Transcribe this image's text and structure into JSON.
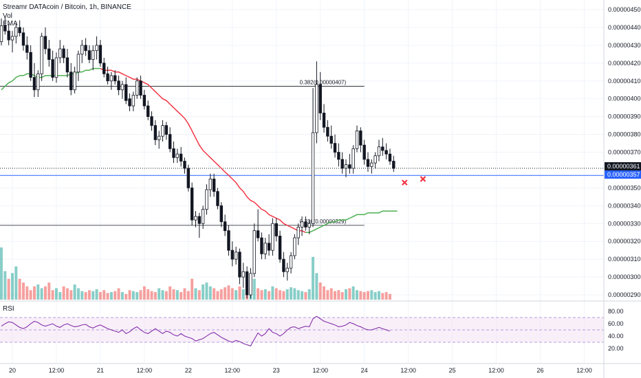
{
  "header": {
    "title": "Streamr DATAcoin / Bitcoin, 1h, BINANCE",
    "vol_label": "Vol",
    "ema_label": "EMA"
  },
  "rsi_panel": {
    "label": "RSI"
  },
  "price_tags": {
    "current": "0.00000361",
    "hline": "0.00000357"
  },
  "colors": {
    "up": "#26a69a",
    "down": "#ef5350",
    "candle": "#131722",
    "ema_up": "#4caf50",
    "ema_down": "#f23645",
    "hline": "#2962ff",
    "rsi_line": "#7b1fa2",
    "rsi_band": "#f3e5f5",
    "marker": "#f23645"
  },
  "chart_data": [
    {
      "type": "candlestick",
      "title": "Streamr DATAcoin / Bitcoin, 1h, BINANCE",
      "y_axis_ticks": [
        "0.00000450",
        "0.00000440",
        "0.00000430",
        "0.00000420",
        "0.00000410",
        "0.00000400",
        "0.00000390",
        "0.00000380",
        "0.00000370",
        "0.00000350",
        "0.00000340",
        "0.00000330",
        "0.00000320",
        "0.00000310",
        "0.00000300",
        "0.00000290"
      ],
      "y_axis_tick_values": [
        4.5,
        4.4,
        4.3,
        4.2,
        4.1,
        4.0,
        3.9,
        3.8,
        3.7,
        3.5,
        3.4,
        3.3,
        3.2,
        3.1,
        3.0,
        2.9
      ],
      "x_axis_ticks": [
        "20",
        "12:00",
        "21",
        "12:00",
        "22",
        "12:00",
        "23",
        "12:00",
        "24",
        "12:00",
        "25",
        "12:00",
        "26",
        "12:00"
      ],
      "x_axis_tick_hours": [
        0,
        12,
        24,
        36,
        48,
        60,
        72,
        84,
        96,
        108,
        120,
        132,
        144,
        156
      ],
      "ylim": [
        2.86,
        4.56
      ],
      "y_unit_note": "values in 1e-6 BTC",
      "candles_start_hour": -3,
      "candles": [
        [
          4.32,
          4.45,
          4.3,
          4.41
        ],
        [
          4.41,
          4.46,
          4.36,
          4.38
        ],
        [
          4.38,
          4.42,
          4.3,
          4.33
        ],
        [
          4.33,
          4.38,
          4.26,
          4.35
        ],
        [
          4.35,
          4.42,
          4.31,
          4.4
        ],
        [
          4.4,
          4.44,
          4.35,
          4.37
        ],
        [
          4.37,
          4.4,
          4.27,
          4.3
        ],
        [
          4.3,
          4.35,
          4.22,
          4.26
        ],
        [
          4.26,
          4.3,
          4.1,
          4.12
        ],
        [
          4.12,
          4.2,
          4.01,
          4.05
        ],
        [
          4.05,
          4.16,
          4.01,
          4.14
        ],
        [
          4.14,
          4.37,
          4.1,
          4.35
        ],
        [
          4.35,
          4.4,
          4.25,
          4.28
        ],
        [
          4.28,
          4.33,
          4.18,
          4.22
        ],
        [
          4.22,
          4.27,
          4.1,
          4.12
        ],
        [
          4.12,
          4.26,
          4.09,
          4.23
        ],
        [
          4.23,
          4.33,
          4.2,
          4.28
        ],
        [
          4.28,
          4.3,
          4.2,
          4.23
        ],
        [
          4.23,
          4.28,
          4.12,
          4.15
        ],
        [
          4.15,
          4.2,
          4.02,
          4.05
        ],
        [
          4.05,
          4.18,
          4.03,
          4.15
        ],
        [
          4.15,
          4.27,
          4.1,
          4.25
        ],
        [
          4.25,
          4.33,
          4.2,
          4.3
        ],
        [
          4.3,
          4.34,
          4.24,
          4.27
        ],
        [
          4.27,
          4.3,
          4.2,
          4.22
        ],
        [
          4.22,
          4.3,
          4.16,
          4.27
        ],
        [
          4.27,
          4.35,
          4.22,
          4.3
        ],
        [
          4.3,
          4.33,
          4.18,
          4.2
        ],
        [
          4.2,
          4.23,
          4.12,
          4.14
        ],
        [
          4.14,
          4.18,
          4.08,
          4.1
        ],
        [
          4.1,
          4.15,
          4.05,
          4.13
        ],
        [
          4.13,
          4.16,
          4.08,
          4.1
        ],
        [
          4.1,
          4.13,
          4.02,
          4.05
        ],
        [
          4.05,
          4.1,
          4.0,
          4.08
        ],
        [
          4.08,
          4.12,
          3.97,
          3.99
        ],
        [
          4.0,
          4.03,
          3.93,
          3.96
        ],
        [
          3.96,
          4.04,
          3.93,
          4.02
        ],
        [
          4.02,
          4.12,
          4.0,
          4.1
        ],
        [
          4.1,
          4.13,
          4.0,
          4.02
        ],
        [
          4.02,
          4.05,
          3.94,
          3.96
        ],
        [
          3.96,
          3.99,
          3.88,
          3.9
        ],
        [
          3.9,
          3.93,
          3.82,
          3.85
        ],
        [
          3.85,
          3.88,
          3.74,
          3.77
        ],
        [
          3.77,
          3.82,
          3.72,
          3.79
        ],
        [
          3.79,
          3.88,
          3.76,
          3.85
        ],
        [
          3.85,
          3.87,
          3.77,
          3.8
        ],
        [
          3.8,
          3.84,
          3.7,
          3.72
        ],
        [
          3.72,
          3.76,
          3.64,
          3.67
        ],
        [
          3.67,
          3.72,
          3.64,
          3.69
        ],
        [
          3.69,
          3.73,
          3.62,
          3.65
        ],
        [
          3.65,
          3.67,
          3.58,
          3.61
        ],
        [
          3.61,
          3.63,
          3.48,
          3.5
        ],
        [
          3.5,
          3.53,
          3.29,
          3.32
        ],
        [
          3.32,
          3.37,
          3.28,
          3.34
        ],
        [
          3.34,
          3.36,
          3.22,
          3.3
        ],
        [
          3.3,
          3.4,
          3.27,
          3.38
        ],
        [
          3.38,
          3.52,
          3.35,
          3.49
        ],
        [
          3.49,
          3.58,
          3.45,
          3.55
        ],
        [
          3.55,
          3.58,
          3.45,
          3.48
        ],
        [
          3.48,
          3.5,
          3.38,
          3.4
        ],
        [
          3.4,
          3.42,
          3.28,
          3.31
        ],
        [
          3.31,
          3.35,
          3.23,
          3.26
        ],
        [
          3.26,
          3.29,
          3.12,
          3.15
        ],
        [
          3.15,
          3.2,
          3.06,
          3.1
        ],
        [
          3.1,
          3.17,
          3.07,
          3.14
        ],
        [
          3.14,
          3.16,
          2.96,
          3.0
        ],
        [
          3.0,
          3.08,
          2.94,
          3.03
        ],
        [
          3.03,
          3.06,
          2.88,
          2.9
        ],
        [
          2.9,
          3.05,
          2.88,
          3.02
        ],
        [
          3.02,
          3.3,
          3.0,
          3.26
        ],
        [
          3.26,
          3.38,
          3.2,
          3.22
        ],
        [
          3.22,
          3.25,
          3.1,
          3.13
        ],
        [
          3.13,
          3.22,
          3.1,
          3.19
        ],
        [
          3.19,
          3.24,
          3.12,
          3.15
        ],
        [
          3.15,
          3.33,
          3.12,
          3.3
        ],
        [
          3.3,
          3.33,
          3.2,
          3.23
        ],
        [
          3.23,
          3.26,
          3.08,
          3.1
        ],
        [
          3.1,
          3.14,
          3.0,
          3.03
        ],
        [
          3.03,
          3.08,
          2.98,
          3.05
        ],
        [
          3.05,
          3.14,
          3.02,
          3.12
        ],
        [
          3.12,
          3.24,
          3.1,
          3.22
        ],
        [
          3.22,
          3.3,
          3.18,
          3.28
        ],
        [
          3.28,
          3.34,
          3.23,
          3.31
        ],
        [
          3.31,
          3.34,
          3.26,
          3.28
        ],
        [
          3.28,
          3.32,
          3.24,
          3.3
        ],
        [
          3.3,
          4.06,
          3.28,
          3.81
        ],
        [
          3.81,
          4.21,
          3.75,
          4.08
        ],
        [
          4.08,
          4.15,
          3.88,
          3.92
        ],
        [
          3.92,
          3.97,
          3.81,
          3.84
        ],
        [
          3.84,
          3.88,
          3.76,
          3.79
        ],
        [
          3.79,
          3.85,
          3.72,
          3.75
        ],
        [
          3.75,
          3.8,
          3.67,
          3.7
        ],
        [
          3.7,
          3.75,
          3.62,
          3.66
        ],
        [
          3.66,
          3.7,
          3.58,
          3.61
        ],
        [
          3.61,
          3.66,
          3.56,
          3.63
        ],
        [
          3.63,
          3.69,
          3.58,
          3.61
        ],
        [
          3.61,
          3.74,
          3.58,
          3.72
        ],
        [
          3.72,
          3.85,
          3.7,
          3.82
        ],
        [
          3.82,
          3.84,
          3.7,
          3.74
        ],
        [
          3.74,
          3.77,
          3.63,
          3.66
        ],
        [
          3.66,
          3.7,
          3.59,
          3.62
        ],
        [
          3.62,
          3.66,
          3.58,
          3.64
        ],
        [
          3.64,
          3.7,
          3.61,
          3.68
        ],
        [
          3.68,
          3.77,
          3.65,
          3.73
        ],
        [
          3.73,
          3.78,
          3.68,
          3.71
        ],
        [
          3.71,
          3.75,
          3.66,
          3.69
        ],
        [
          3.69,
          3.72,
          3.63,
          3.65
        ],
        [
          3.65,
          3.68,
          3.59,
          3.61
        ]
      ],
      "volume": [
        55,
        30,
        22,
        28,
        35,
        22,
        18,
        14,
        10,
        14,
        16,
        12,
        14,
        18,
        10,
        12,
        8,
        14,
        12,
        10,
        16,
        12,
        9,
        8,
        10,
        9,
        11,
        8,
        10,
        7,
        8,
        9,
        12,
        8,
        6,
        10,
        9,
        8,
        10,
        14,
        11,
        9,
        8,
        12,
        10,
        9,
        14,
        11,
        10,
        8,
        12,
        9,
        22,
        12,
        10,
        16,
        18,
        14,
        12,
        9,
        11,
        13,
        15,
        12,
        10,
        14,
        11,
        18,
        10,
        22,
        12,
        10,
        11,
        9,
        14,
        12,
        10,
        9,
        11,
        13,
        12,
        10,
        9,
        8,
        11,
        45,
        28,
        18,
        14,
        10,
        12,
        9,
        10,
        8,
        11,
        12,
        14,
        10,
        9,
        8,
        9,
        10,
        8,
        9,
        7,
        8,
        6
      ],
      "volume_up": [
        true,
        true,
        false,
        true,
        true,
        false,
        false,
        false,
        false,
        false,
        true,
        true,
        false,
        false,
        false,
        true,
        true,
        false,
        false,
        false,
        true,
        true,
        true,
        false,
        false,
        true,
        true,
        false,
        false,
        false,
        true,
        false,
        false,
        true,
        false,
        false,
        true,
        true,
        false,
        false,
        false,
        false,
        false,
        true,
        true,
        false,
        false,
        false,
        true,
        false,
        false,
        false,
        false,
        true,
        false,
        true,
        true,
        true,
        false,
        false,
        false,
        false,
        false,
        false,
        true,
        false,
        true,
        false,
        true,
        true,
        false,
        false,
        true,
        false,
        true,
        false,
        false,
        false,
        true,
        true,
        true,
        true,
        true,
        false,
        true,
        true,
        true,
        false,
        false,
        false,
        false,
        false,
        false,
        false,
        true,
        false,
        true,
        true,
        false,
        false,
        false,
        true,
        true,
        true,
        false,
        false,
        false
      ],
      "ema": [
        4.05,
        4.07,
        4.09,
        4.1,
        4.12,
        4.13,
        4.13,
        4.14,
        4.14,
        4.13,
        4.12,
        4.12,
        4.13,
        4.13,
        4.13,
        4.13,
        4.13,
        4.13,
        4.13,
        4.14,
        4.14,
        4.15,
        4.15,
        4.16,
        4.16,
        4.17,
        4.17,
        4.17,
        4.16,
        4.16,
        4.16,
        4.15,
        4.15,
        4.14,
        4.13,
        4.12,
        4.11,
        4.11,
        4.1,
        4.09,
        4.08,
        4.06,
        4.04,
        4.02,
        4.0,
        3.99,
        3.97,
        3.95,
        3.93,
        3.91,
        3.89,
        3.86,
        3.82,
        3.78,
        3.74,
        3.71,
        3.69,
        3.67,
        3.65,
        3.63,
        3.61,
        3.59,
        3.57,
        3.55,
        3.53,
        3.5,
        3.48,
        3.45,
        3.43,
        3.42,
        3.4,
        3.38,
        3.37,
        3.35,
        3.34,
        3.33,
        3.32,
        3.3,
        3.29,
        3.28,
        3.27,
        3.26,
        3.26,
        3.25,
        3.25,
        3.26,
        3.27,
        3.28,
        3.29,
        3.3,
        3.31,
        3.31,
        3.32,
        3.32,
        3.32,
        3.33,
        3.34,
        3.35,
        3.35,
        3.35,
        3.36,
        3.36,
        3.36,
        3.36,
        3.37,
        3.37,
        3.37,
        3.37,
        3.37
      ],
      "horizontal_lines": [
        {
          "label": "0.382(0.00000407)",
          "value": 4.07,
          "from_hour": -3,
          "to_hour": 96
        },
        {
          "label": "0.236(0.00000329)",
          "value": 3.29,
          "from_hour": -3,
          "to_hour": 96
        },
        {
          "label": "0.00000357",
          "value": 3.57,
          "from_hour": -3,
          "to_hour": 180
        }
      ],
      "current_price": 3.61,
      "markers": [
        {
          "hour": 107,
          "value": 3.53
        },
        {
          "hour": 112,
          "value": 3.55
        }
      ]
    },
    {
      "type": "line",
      "title": "RSI",
      "y_axis_ticks": [
        "80.00",
        "60.00",
        "40.00",
        "20.00"
      ],
      "y_axis_tick_values": [
        80,
        60,
        40,
        20
      ],
      "ylim": [
        15,
        85
      ],
      "band": [
        30,
        70
      ],
      "midline": 50,
      "x_start_hour": -3,
      "values": [
        56,
        60,
        63,
        62,
        58,
        54,
        52,
        55,
        60,
        64,
        62,
        58,
        56,
        58,
        60,
        56,
        54,
        58,
        60,
        57,
        55,
        56,
        58,
        59,
        55,
        53,
        56,
        58,
        55,
        52,
        50,
        48,
        46,
        50,
        44,
        47,
        52,
        55,
        50,
        46,
        44,
        48,
        52,
        48,
        44,
        48,
        46,
        42,
        40,
        44,
        40,
        38,
        36,
        32,
        34,
        36,
        40,
        44,
        46,
        42,
        38,
        35,
        32,
        30,
        33,
        31,
        28,
        26,
        24,
        35,
        45,
        40,
        44,
        52,
        46,
        44,
        40,
        44,
        50,
        54,
        55,
        52,
        54,
        56,
        55,
        68,
        72,
        68,
        64,
        62,
        60,
        58,
        55,
        56,
        58,
        62,
        60,
        57,
        55,
        52,
        50,
        50,
        52,
        54,
        52,
        50,
        48
      ]
    }
  ]
}
